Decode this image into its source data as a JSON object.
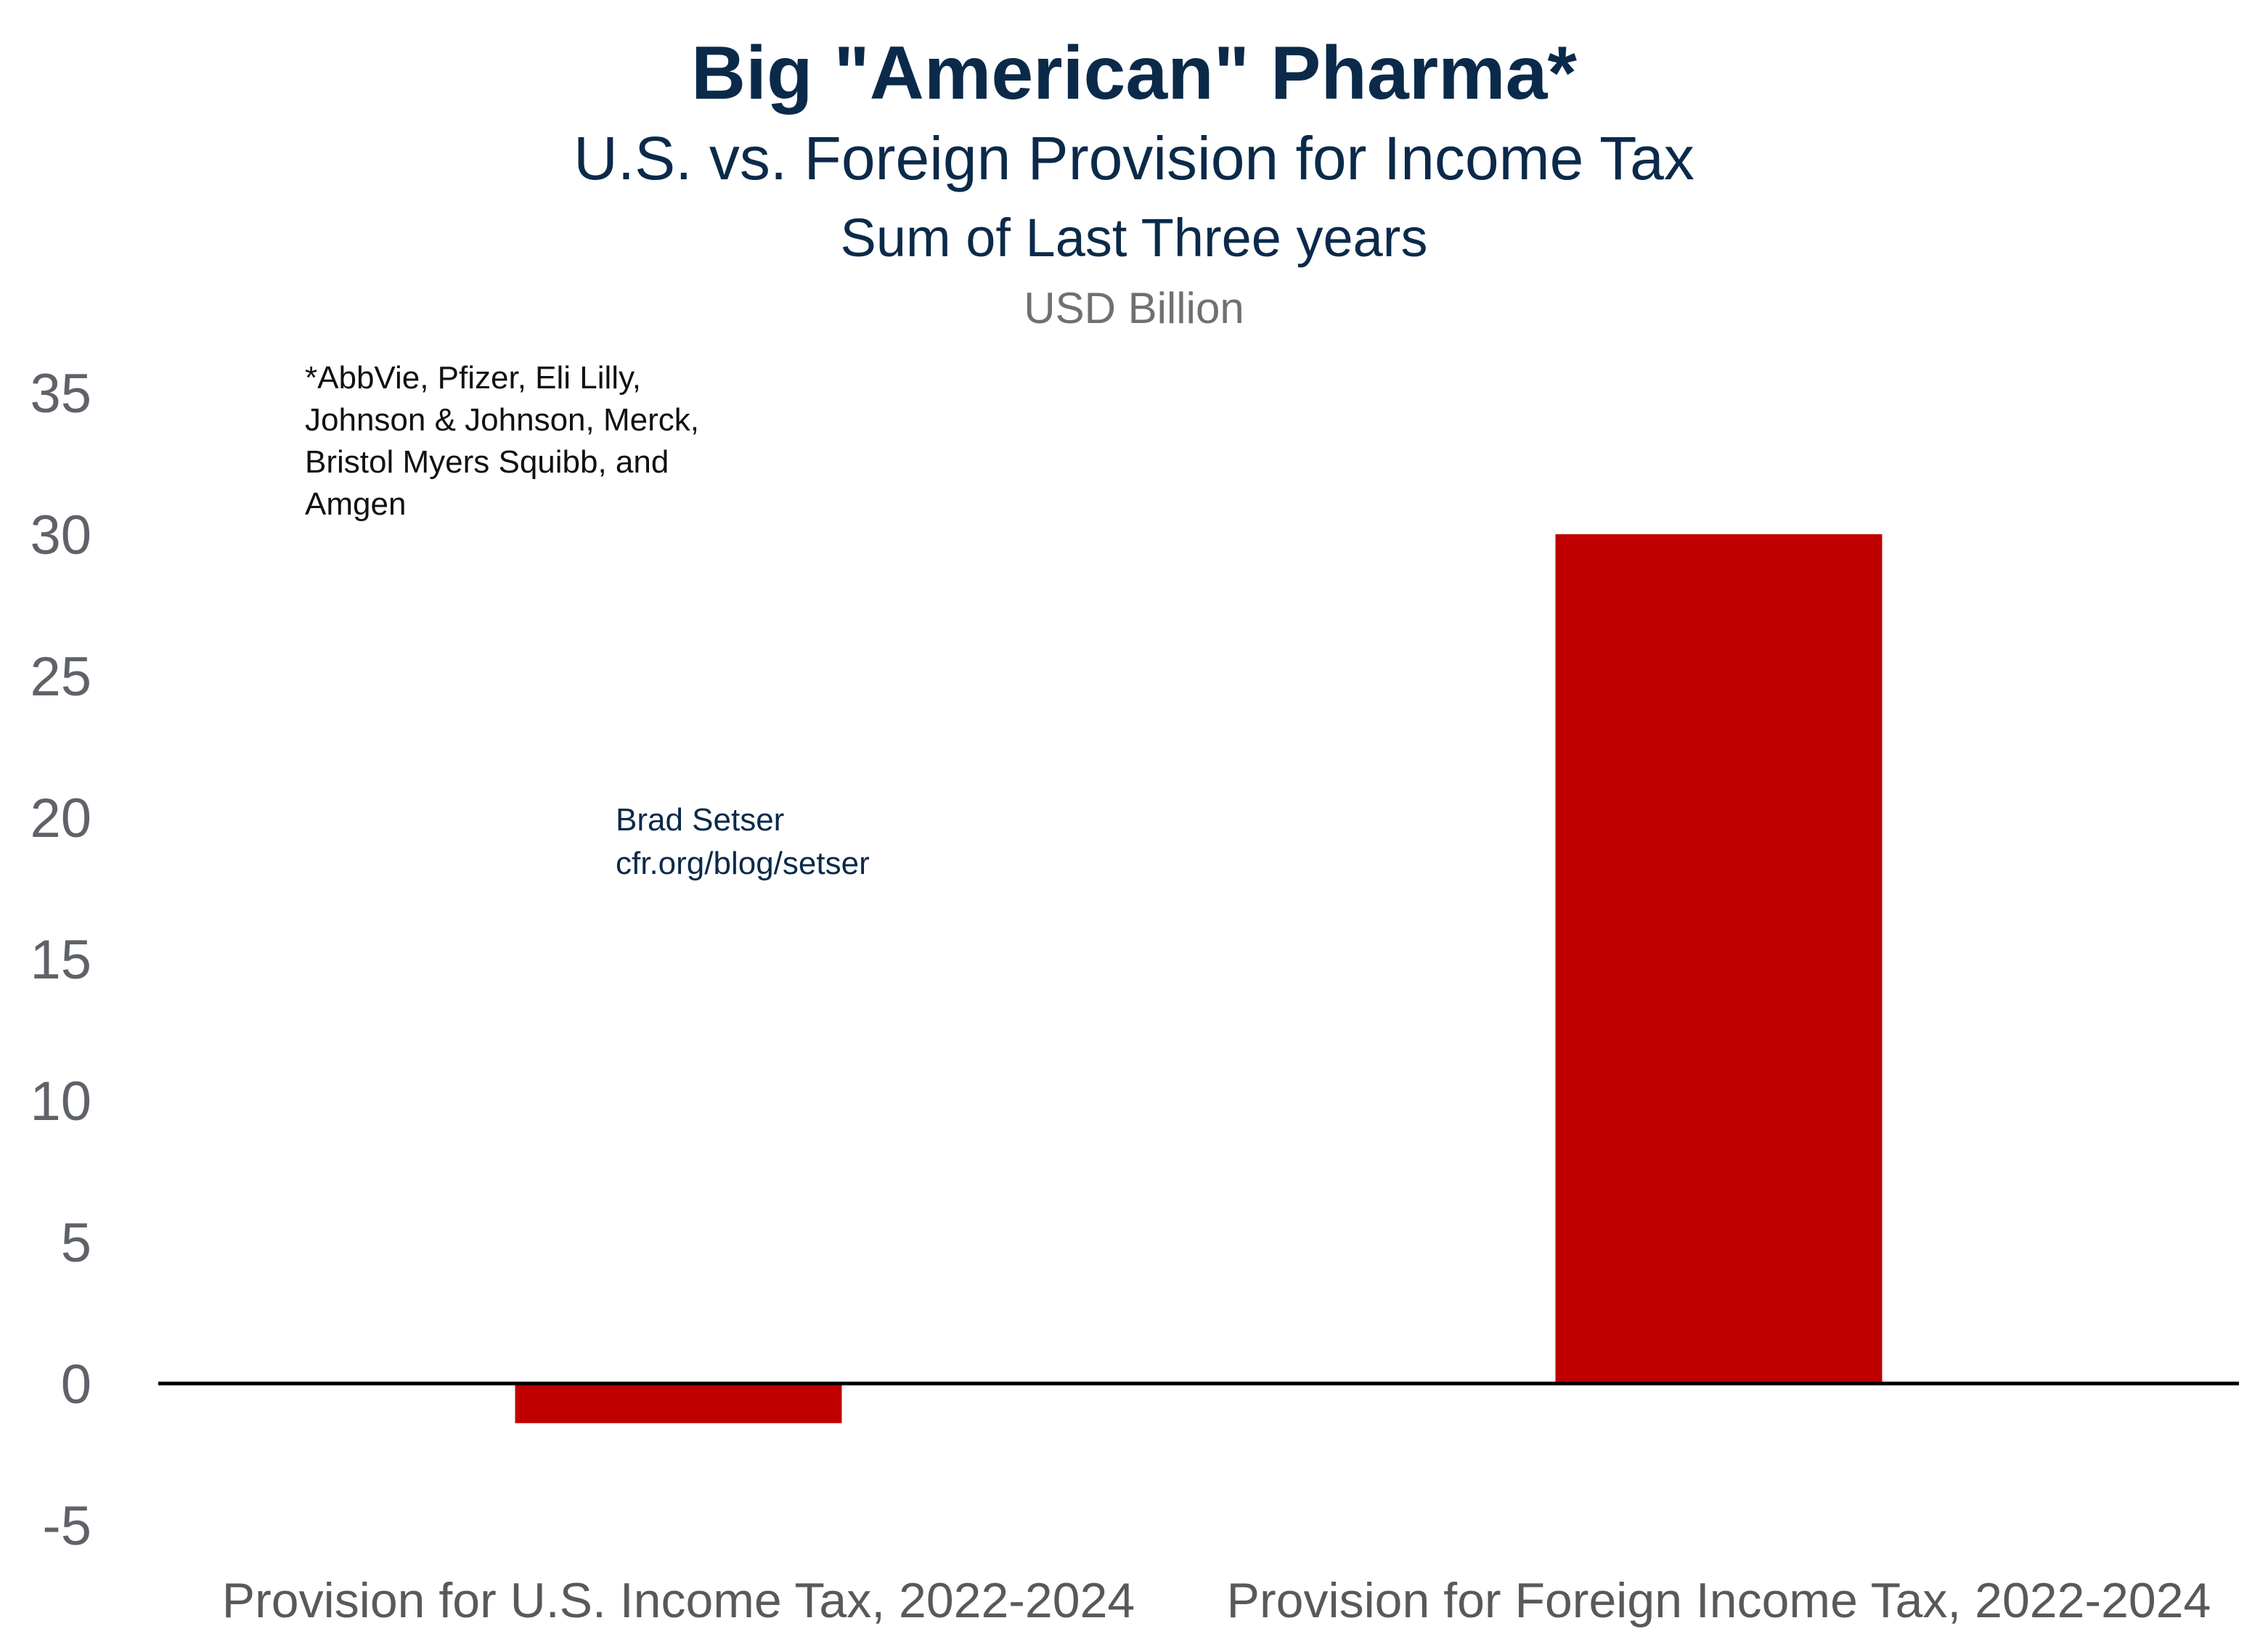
{
  "chart_data": {
    "type": "bar",
    "title": "Big \"American\" Pharma*",
    "subtitle": "U.S. vs. Foreign Provision for Income Tax",
    "subtitle2": "Sum of Last Three years",
    "units": "USD Billion",
    "categories": [
      "Provision for U.S. Income Tax, 2022-2024",
      "Provision for Foreign Income Tax, 2022-2024"
    ],
    "values": [
      -1.4,
      30.0
    ],
    "ylim": [
      -5,
      35
    ],
    "yticks": [
      35,
      30,
      25,
      20,
      15,
      10,
      5,
      0,
      -5
    ],
    "xlabel": "",
    "ylabel": "",
    "grid": false,
    "legend": "none",
    "bar_color": "#c00000",
    "annotations": {
      "footnote": [
        "*AbbVie, Pfizer, Eli Lilly,",
        "Johnson & Johnson, Merck,",
        "Bristol Myers Squibb, and",
        "Amgen"
      ],
      "credit": [
        "Brad Setser",
        "cfr.org/blog/setser"
      ]
    }
  }
}
